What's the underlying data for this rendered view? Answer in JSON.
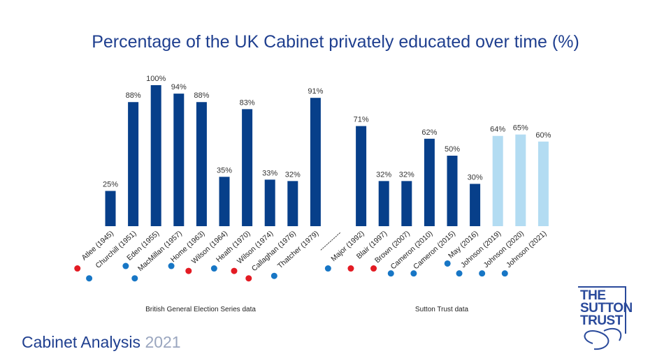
{
  "chart_data": {
    "type": "bar",
    "title": "Percentage of the UK Cabinet privately educated over time (%)",
    "categories": [
      "Atlee (1945)",
      "Churchill (1951)",
      "Eden (1955)",
      "MacMillan (1957)",
      "Home (1963)",
      "Wilson (1964)",
      "Heath (1970)",
      "Wilson (1974)",
      "Callaghan (1976)",
      "Thatcher (1979)",
      "-----------",
      "Major (1992)",
      "Blair (1997)",
      "Brown (2007)",
      "Cameron (2010)",
      "Cameron (2015)",
      "May (2016)",
      "Johnson (2019)",
      "Johnson (2020)",
      "Johnson (2021)"
    ],
    "values": [
      25,
      88,
      100,
      94,
      88,
      35,
      83,
      33,
      32,
      91,
      null,
      71,
      32,
      32,
      62,
      50,
      30,
      64,
      65,
      60
    ],
    "value_labels": [
      "25%",
      "88%",
      "100%",
      "94%",
      "88%",
      "35%",
      "83%",
      "33%",
      "32%",
      "91%",
      "",
      "71%",
      "32%",
      "32%",
      "62%",
      "50%",
      "30%",
      "64%",
      "65%",
      "60%"
    ],
    "bar_colors": [
      "#073f8a",
      "#073f8a",
      "#073f8a",
      "#073f8a",
      "#073f8a",
      "#073f8a",
      "#073f8a",
      "#073f8a",
      "#073f8a",
      "#073f8a",
      "#073f8a",
      "#073f8a",
      "#073f8a",
      "#073f8a",
      "#073f8a",
      "#073f8a",
      "#073f8a",
      "#b3dcf2",
      "#b3dcf2",
      "#b3dcf2"
    ],
    "party_colors": [
      "#e31b23",
      "#1776c5",
      "#1776c5",
      "#1776c5",
      "#1776c5",
      "#e31b23",
      "#1776c5",
      "#e31b23",
      "#e31b23",
      "#1776c5",
      null,
      "#1776c5",
      "#e31b23",
      "#e31b23",
      "#1776c5",
      "#1776c5",
      "#1776c5",
      "#1776c5",
      "#1776c5",
      "#1776c5"
    ],
    "group_labels": [
      "British General Election Series data",
      "Sutton Trust data"
    ],
    "ylim": [
      0,
      100
    ],
    "grid": false,
    "legend": "none"
  },
  "footer": {
    "title": "Cabinet Analysis",
    "year": "2021"
  },
  "logo": {
    "lines": [
      "THE",
      "SUTTON",
      "TRUST"
    ]
  },
  "colors": {
    "title": "#1f3f8f",
    "year": "#9aa6bf"
  }
}
